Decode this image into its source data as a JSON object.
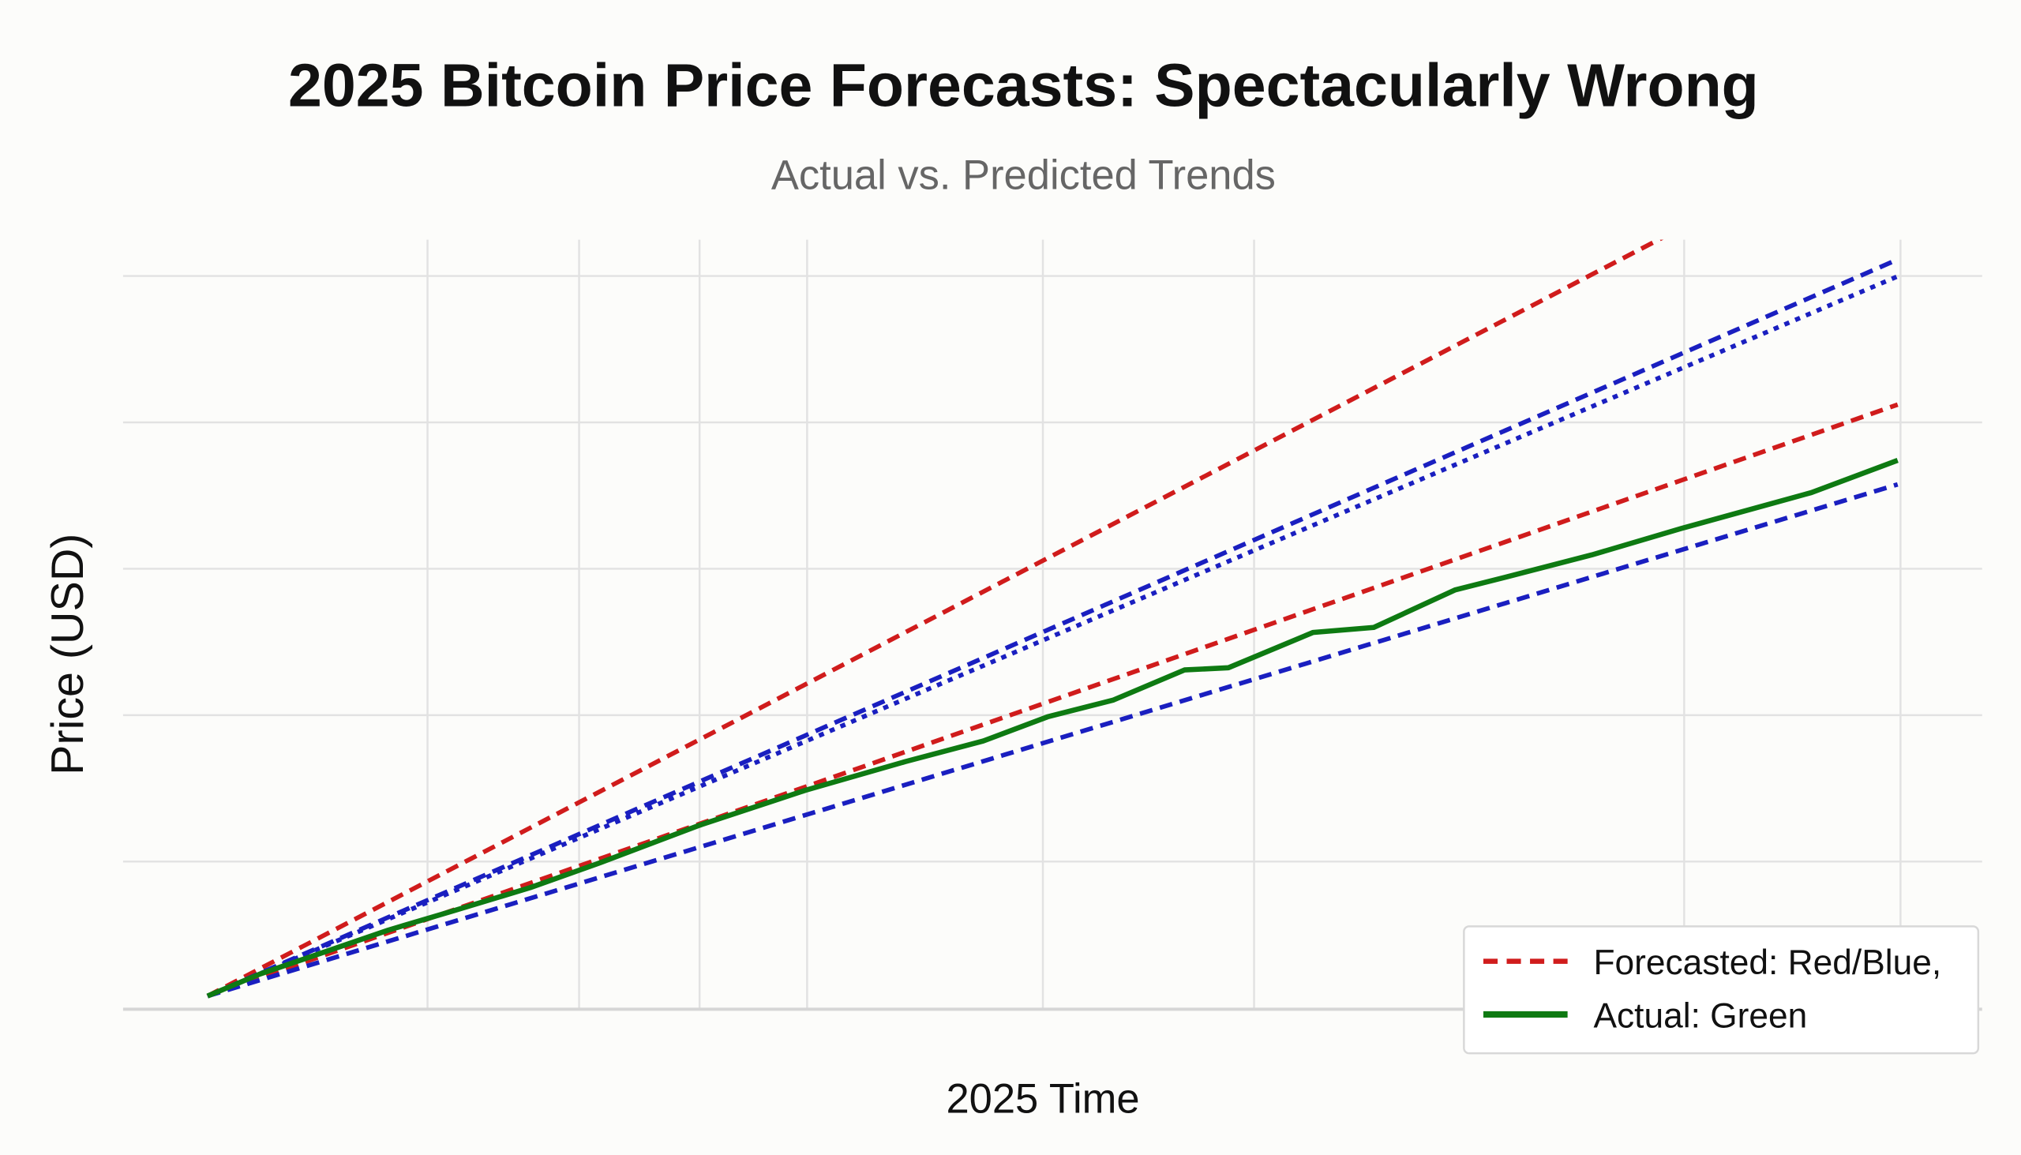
{
  "chart_data": {
    "type": "line",
    "title": "2025 Bitcoin Price Forecasts: Spectacularly Wrong",
    "subtitle": "Actual vs. Predicted Trends",
    "xlabel": "2025 Time",
    "ylabel": "Price (USD)",
    "xlim": [
      -5,
      105
    ],
    "ylim": [
      0,
      105
    ],
    "grid": true,
    "tick_labels_shown": false,
    "legend": {
      "placement": "bottom-right",
      "entries": [
        {
          "label": "Forecasted: Red/Blue,",
          "color": "#d01c1c",
          "style": "dashed"
        },
        {
          "label": "Actual: Green",
          "color": "#0e7a12",
          "style": "solid"
        }
      ]
    },
    "series": [
      {
        "color": "#d01c1c",
        "style": "dashed",
        "x": [
          0,
          100
        ],
        "y": [
          1.8,
          122
        ]
      },
      {
        "color": "#1a1fc0",
        "style": "dashed",
        "x": [
          0,
          100
        ],
        "y": [
          1.8,
          102.3
        ]
      },
      {
        "color": "#1a1fc0",
        "style": "dotted",
        "x": [
          0,
          100
        ],
        "y": [
          1.8,
          100
        ]
      },
      {
        "color": "#d01c1c",
        "style": "dashed",
        "x": [
          0,
          100
        ],
        "y": [
          1.8,
          82.5
        ]
      },
      {
        "color": "#1a1fc0",
        "style": "dashed",
        "x": [
          0,
          100
        ],
        "y": [
          1.8,
          71.6
        ]
      },
      {
        "color": "#0e7a12",
        "style": "solid",
        "x": [
          0,
          3.1,
          6.9,
          10.7,
          14.5,
          19.1,
          23.0,
          29.1,
          35.4,
          41.3,
          45.9,
          49.7,
          53.6,
          57.8,
          60.4,
          65.4,
          69.0,
          73.8,
          76.9,
          81.9,
          87.2,
          94.9,
          100
        ],
        "y": [
          1.8,
          4.8,
          7.8,
          10.8,
          13.4,
          16.6,
          19.8,
          25.1,
          29.9,
          33.8,
          36.6,
          39.9,
          42.2,
          46.3,
          46.6,
          51.4,
          52.1,
          57.2,
          59.0,
          62.0,
          65.6,
          70.5,
          74.9
        ]
      }
    ]
  }
}
